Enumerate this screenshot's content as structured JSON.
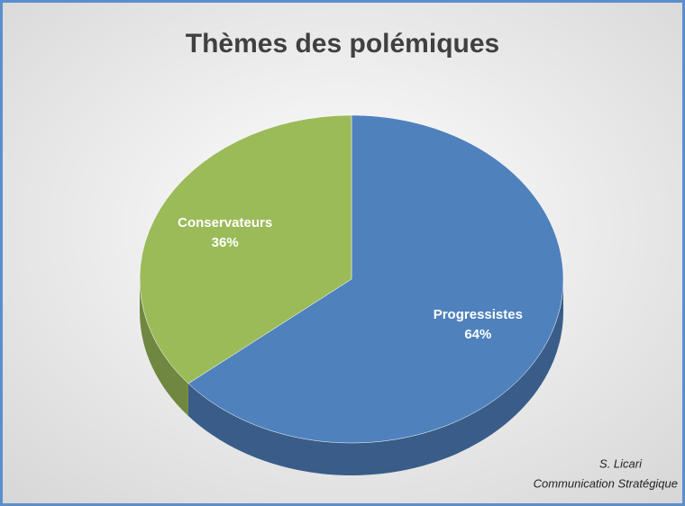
{
  "chart_data": {
    "type": "pie",
    "title": "Thèmes des polémiques",
    "categories": [
      "Progressistes",
      "Conservateurs"
    ],
    "values": [
      64,
      36
    ],
    "value_labels": [
      "64%",
      "36%"
    ],
    "colors": [
      "#4f81bd",
      "#9bbb59"
    ],
    "annotations": [
      "S. Licari",
      "Communication Stratégique"
    ]
  }
}
